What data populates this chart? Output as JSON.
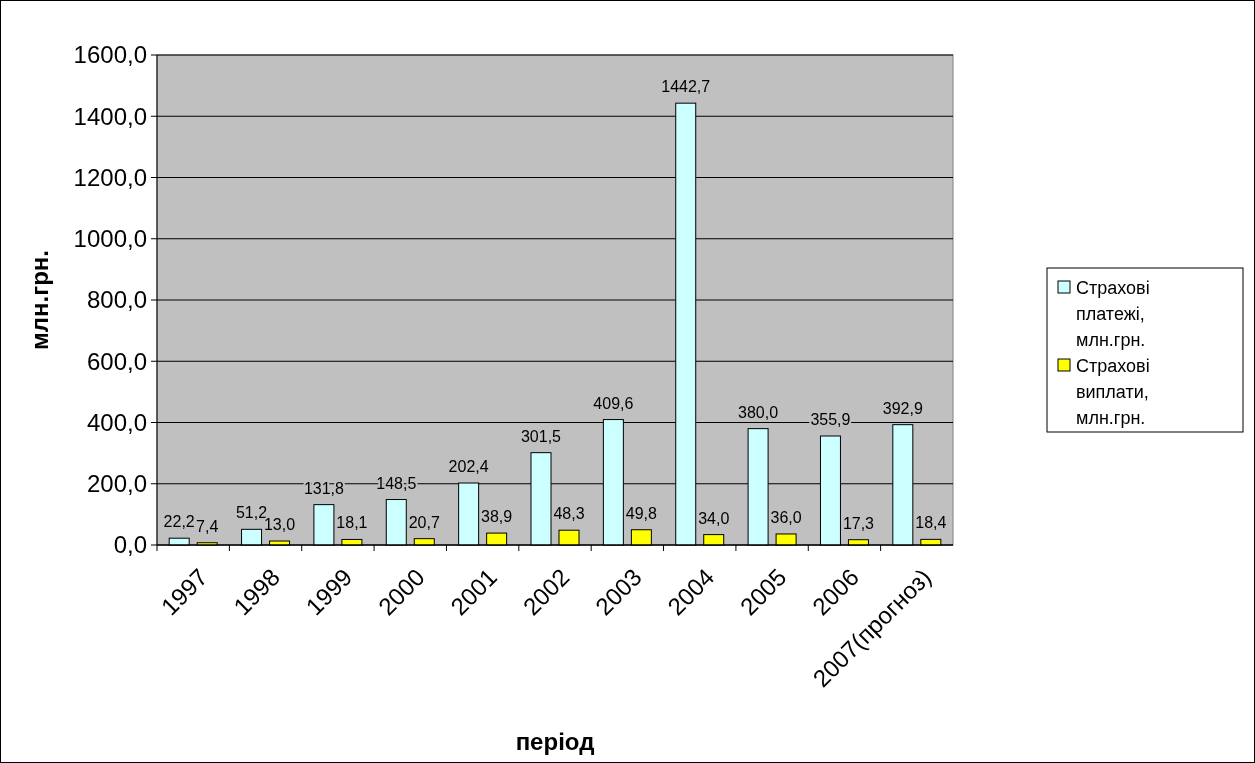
{
  "chart_data": {
    "type": "bar",
    "xlabel": "період",
    "ylabel": "млн.грн.",
    "categories": [
      "1997",
      "1998",
      "1999",
      "2000",
      "2001",
      "2002",
      "2003",
      "2004",
      "2005",
      "2006",
      "2007(прогноз)"
    ],
    "series": [
      {
        "name": "Страхові платежі, млн.грн.",
        "color": "#ccffff",
        "values": [
          22.2,
          51.2,
          131.8,
          148.5,
          202.4,
          301.5,
          409.6,
          1442.7,
          380.0,
          355.9,
          392.9
        ],
        "value_labels": [
          "22,2",
          "51,2",
          "131,8",
          "148,5",
          "202,4",
          "301,5",
          "409,6",
          "1442,7",
          "380,0",
          "355,9",
          "392,9"
        ]
      },
      {
        "name": "Страхові виплати, млн.грн.",
        "color": "#ffff00",
        "values": [
          7.4,
          13.0,
          18.1,
          20.7,
          38.9,
          48.3,
          49.8,
          34.0,
          36.0,
          17.3,
          18.4
        ],
        "value_labels": [
          "7,4",
          "13,0",
          "18,1",
          "20,7",
          "38,9",
          "48,3",
          "49,8",
          "34,0",
          "36,0",
          "17,3",
          "18,4"
        ]
      }
    ],
    "ylim": [
      0,
      1600
    ],
    "yticks": [
      {
        "value": 0,
        "label": "0,0"
      },
      {
        "value": 200,
        "label": "200,0"
      },
      {
        "value": 400,
        "label": "400,0"
      },
      {
        "value": 600,
        "label": "600,0"
      },
      {
        "value": 800,
        "label": "800,0"
      },
      {
        "value": 1000,
        "label": "1000,0"
      },
      {
        "value": 1200,
        "label": "1200,0"
      },
      {
        "value": 1400,
        "label": "1400,0"
      },
      {
        "value": 1600,
        "label": "1600,0"
      }
    ],
    "grid": "y",
    "legend": "right"
  }
}
